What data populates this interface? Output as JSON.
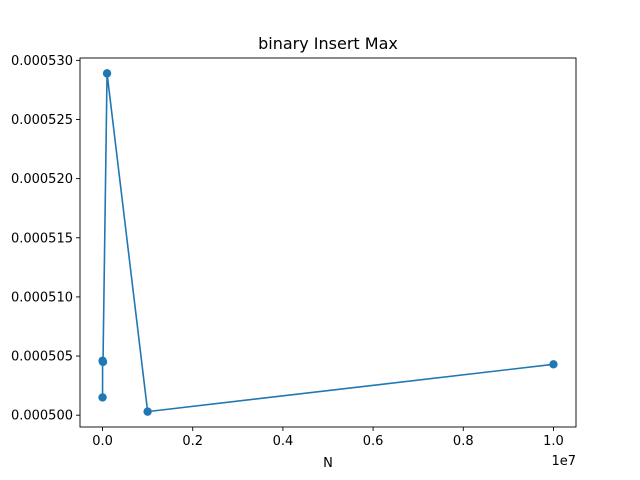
{
  "chart_data": {
    "type": "line",
    "title": "binary Insert Max",
    "xlabel": "N",
    "ylabel": "",
    "x_offset_label": "1e7",
    "xlim": [
      -0.05,
      1.05
    ],
    "ylim": [
      0.000499,
      0.0005302
    ],
    "xticks": [
      0.0,
      0.2,
      0.4,
      0.6,
      0.8,
      1.0
    ],
    "xtick_labels": [
      "0.0",
      "0.2",
      "0.4",
      "0.6",
      "0.8",
      "1.0"
    ],
    "yticks": [
      0.0005,
      0.000505,
      0.00051,
      0.000515,
      0.00052,
      0.000525,
      0.00053
    ],
    "ytick_labels": [
      "0.000500",
      "0.000505",
      "0.000510",
      "0.000515",
      "0.000520",
      "0.000525",
      "0.000530"
    ],
    "grid": false,
    "series": [
      {
        "color": "#1f77b4",
        "marker": "circle",
        "x": [
          1e-05,
          0.0001,
          0.001,
          0.01,
          0.1,
          1.0
        ],
        "y": [
          0.0005015,
          0.0005046,
          0.0005045,
          0.0005289,
          0.0005003,
          0.0005043
        ]
      }
    ]
  }
}
